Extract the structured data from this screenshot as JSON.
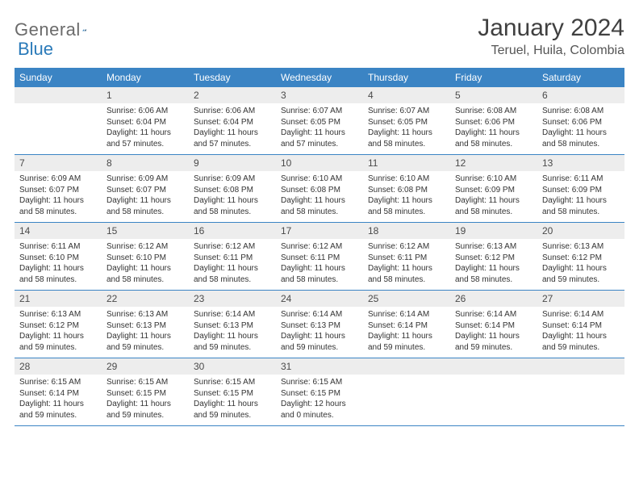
{
  "logo": {
    "text1": "General",
    "text2": "Blue"
  },
  "title": "January 2024",
  "location": "Teruel, Huila, Colombia",
  "colors": {
    "header_bg": "#3b84c4",
    "header_text": "#ffffff",
    "daynum_bg": "#ededed",
    "rule": "#3b84c4",
    "logo_gray": "#6b6b6b",
    "logo_blue": "#2a7ab9"
  },
  "day_headers": [
    "Sunday",
    "Monday",
    "Tuesday",
    "Wednesday",
    "Thursday",
    "Friday",
    "Saturday"
  ],
  "weeks": [
    [
      null,
      {
        "n": "1",
        "sr": "6:06 AM",
        "ss": "6:04 PM",
        "dl": "11 hours and 57 minutes."
      },
      {
        "n": "2",
        "sr": "6:06 AM",
        "ss": "6:04 PM",
        "dl": "11 hours and 57 minutes."
      },
      {
        "n": "3",
        "sr": "6:07 AM",
        "ss": "6:05 PM",
        "dl": "11 hours and 57 minutes."
      },
      {
        "n": "4",
        "sr": "6:07 AM",
        "ss": "6:05 PM",
        "dl": "11 hours and 58 minutes."
      },
      {
        "n": "5",
        "sr": "6:08 AM",
        "ss": "6:06 PM",
        "dl": "11 hours and 58 minutes."
      },
      {
        "n": "6",
        "sr": "6:08 AM",
        "ss": "6:06 PM",
        "dl": "11 hours and 58 minutes."
      }
    ],
    [
      {
        "n": "7",
        "sr": "6:09 AM",
        "ss": "6:07 PM",
        "dl": "11 hours and 58 minutes."
      },
      {
        "n": "8",
        "sr": "6:09 AM",
        "ss": "6:07 PM",
        "dl": "11 hours and 58 minutes."
      },
      {
        "n": "9",
        "sr": "6:09 AM",
        "ss": "6:08 PM",
        "dl": "11 hours and 58 minutes."
      },
      {
        "n": "10",
        "sr": "6:10 AM",
        "ss": "6:08 PM",
        "dl": "11 hours and 58 minutes."
      },
      {
        "n": "11",
        "sr": "6:10 AM",
        "ss": "6:08 PM",
        "dl": "11 hours and 58 minutes."
      },
      {
        "n": "12",
        "sr": "6:10 AM",
        "ss": "6:09 PM",
        "dl": "11 hours and 58 minutes."
      },
      {
        "n": "13",
        "sr": "6:11 AM",
        "ss": "6:09 PM",
        "dl": "11 hours and 58 minutes."
      }
    ],
    [
      {
        "n": "14",
        "sr": "6:11 AM",
        "ss": "6:10 PM",
        "dl": "11 hours and 58 minutes."
      },
      {
        "n": "15",
        "sr": "6:12 AM",
        "ss": "6:10 PM",
        "dl": "11 hours and 58 minutes."
      },
      {
        "n": "16",
        "sr": "6:12 AM",
        "ss": "6:11 PM",
        "dl": "11 hours and 58 minutes."
      },
      {
        "n": "17",
        "sr": "6:12 AM",
        "ss": "6:11 PM",
        "dl": "11 hours and 58 minutes."
      },
      {
        "n": "18",
        "sr": "6:12 AM",
        "ss": "6:11 PM",
        "dl": "11 hours and 58 minutes."
      },
      {
        "n": "19",
        "sr": "6:13 AM",
        "ss": "6:12 PM",
        "dl": "11 hours and 58 minutes."
      },
      {
        "n": "20",
        "sr": "6:13 AM",
        "ss": "6:12 PM",
        "dl": "11 hours and 59 minutes."
      }
    ],
    [
      {
        "n": "21",
        "sr": "6:13 AM",
        "ss": "6:12 PM",
        "dl": "11 hours and 59 minutes."
      },
      {
        "n": "22",
        "sr": "6:13 AM",
        "ss": "6:13 PM",
        "dl": "11 hours and 59 minutes."
      },
      {
        "n": "23",
        "sr": "6:14 AM",
        "ss": "6:13 PM",
        "dl": "11 hours and 59 minutes."
      },
      {
        "n": "24",
        "sr": "6:14 AM",
        "ss": "6:13 PM",
        "dl": "11 hours and 59 minutes."
      },
      {
        "n": "25",
        "sr": "6:14 AM",
        "ss": "6:14 PM",
        "dl": "11 hours and 59 minutes."
      },
      {
        "n": "26",
        "sr": "6:14 AM",
        "ss": "6:14 PM",
        "dl": "11 hours and 59 minutes."
      },
      {
        "n": "27",
        "sr": "6:14 AM",
        "ss": "6:14 PM",
        "dl": "11 hours and 59 minutes."
      }
    ],
    [
      {
        "n": "28",
        "sr": "6:15 AM",
        "ss": "6:14 PM",
        "dl": "11 hours and 59 minutes."
      },
      {
        "n": "29",
        "sr": "6:15 AM",
        "ss": "6:15 PM",
        "dl": "11 hours and 59 minutes."
      },
      {
        "n": "30",
        "sr": "6:15 AM",
        "ss": "6:15 PM",
        "dl": "11 hours and 59 minutes."
      },
      {
        "n": "31",
        "sr": "6:15 AM",
        "ss": "6:15 PM",
        "dl": "12 hours and 0 minutes."
      },
      null,
      null,
      null
    ]
  ],
  "labels": {
    "sunrise": "Sunrise:",
    "sunset": "Sunset:",
    "daylight": "Daylight:"
  }
}
